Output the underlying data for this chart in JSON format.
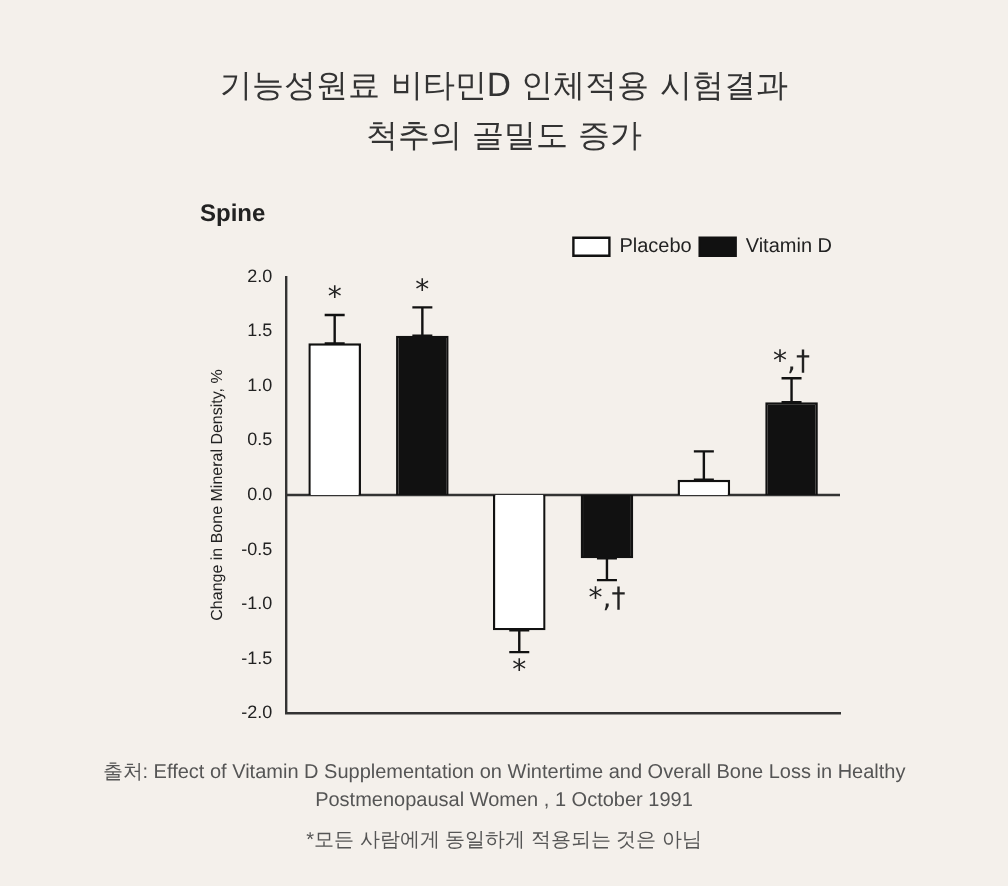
{
  "chart_data": {
    "type": "bar",
    "title": "기능성원료 비타민D 인체적용 시험결과\n척추의 골밀도 증가",
    "subtitle": "Spine",
    "ylabel": "Change in Bone Mineral Density, %",
    "categories": [
      null,
      null,
      null
    ],
    "series": [
      {
        "name": "Placebo",
        "color": "#ffffff",
        "values": [
          1.39,
          -1.24,
          0.14
        ],
        "errors": [
          [
            1.39,
            1.65
          ],
          [
            -1.44,
            -1.24
          ],
          [
            0.14,
            0.4
          ]
        ],
        "value_labels": [
          "*",
          "*",
          null
        ]
      },
      {
        "name": "Vitamin D",
        "color": "#111111",
        "values": [
          1.46,
          -0.58,
          0.85
        ],
        "errors": [
          [
            1.46,
            1.72
          ],
          [
            -0.78,
            -0.58
          ],
          [
            0.85,
            1.07
          ]
        ],
        "value_labels": [
          "*",
          "*,†",
          "*,†"
        ]
      }
    ],
    "ylim": [
      -2,
      2
    ],
    "yticks": [
      {
        "value": -2,
        "label": "-2.0"
      },
      {
        "value": -1.5,
        "label": "-1.5"
      },
      {
        "value": -1,
        "label": "-1.0"
      },
      {
        "value": -0.5,
        "label": "-0.5"
      },
      {
        "value": 0,
        "label": "0.0"
      },
      {
        "value": 0.5,
        "label": "0.5"
      },
      {
        "value": 1,
        "label": "1.0"
      },
      {
        "value": 1.5,
        "label": "1.5"
      },
      {
        "value": 2,
        "label": "2.0"
      }
    ],
    "ref_lines": [
      {
        "axis": "y",
        "value": 0,
        "color": "#333333"
      }
    ],
    "grid": false,
    "legend": "top right",
    "tick_labels": "y",
    "annotations": [
      "출처: Effect of Vitamin D Supplementation on Wintertime and Overall Bone Loss in Healthy Postmenopausal Women , 1 October 1991",
      "*모든 사람에게 동일하게 적용되는 것은 아님"
    ]
  }
}
